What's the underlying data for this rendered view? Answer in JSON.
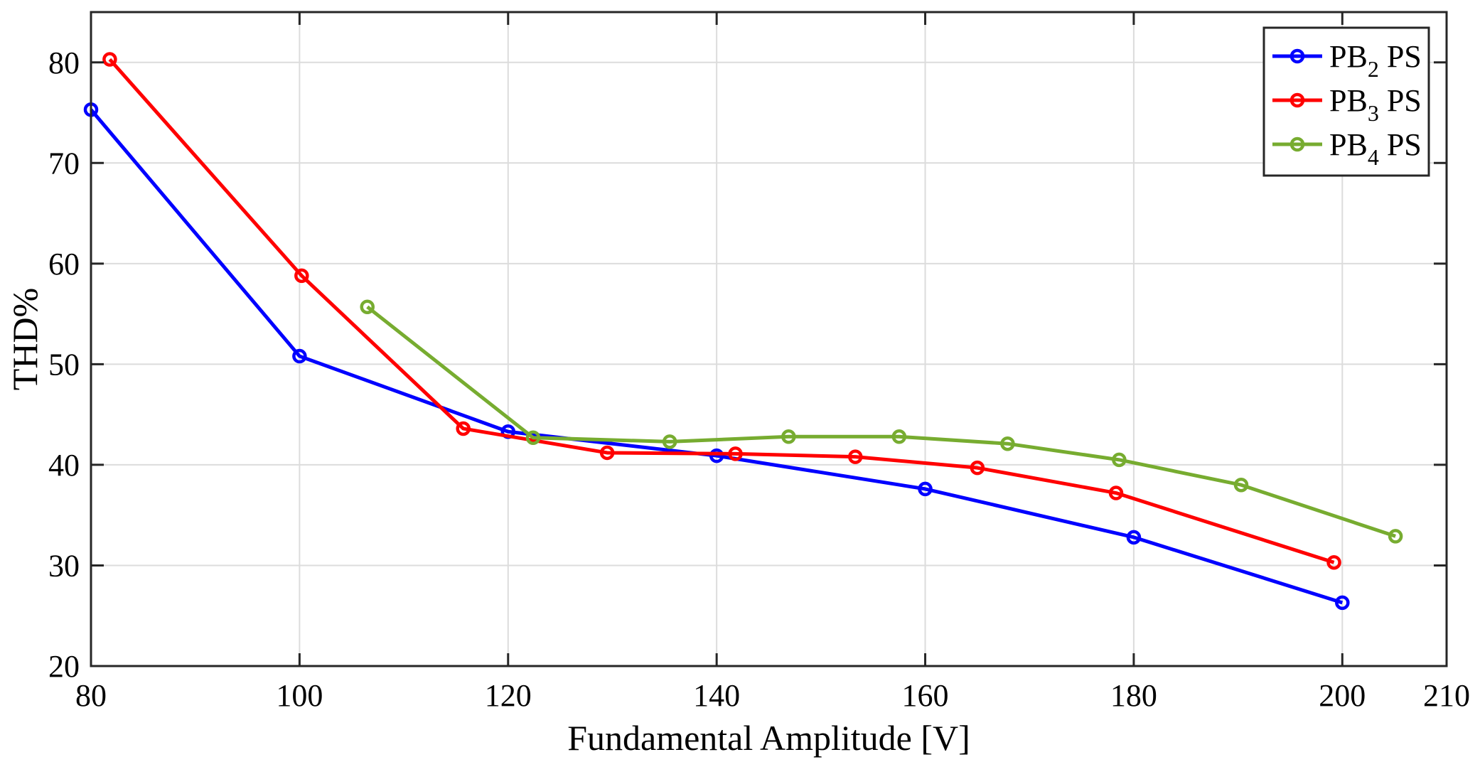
{
  "chart_data": {
    "type": "line",
    "title": "",
    "xlabel": "Fundamental Amplitude [V]",
    "ylabel": "THD%",
    "xlim": [
      80,
      210
    ],
    "ylim": [
      20,
      85
    ],
    "xticks": [
      80,
      100,
      120,
      140,
      160,
      180,
      200,
      210
    ],
    "yticks": [
      20,
      30,
      40,
      50,
      60,
      70,
      80
    ],
    "grid": true,
    "legend_position": "top-right",
    "series": [
      {
        "name": "PB2 PS",
        "legend": {
          "base": "PB",
          "sub": "2",
          "suffix": " PS"
        },
        "color": "#0000ff",
        "x": [
          80,
          100,
          120,
          140,
          160,
          180,
          200
        ],
        "y": [
          75.3,
          50.8,
          43.3,
          40.9,
          37.6,
          32.8,
          26.3
        ]
      },
      {
        "name": "PB3 PS",
        "legend": {
          "base": "PB",
          "sub": "3",
          "suffix": " PS"
        },
        "color": "#ff0000",
        "x": [
          81.8,
          100.2,
          115.7,
          129.5,
          141.8,
          153.3,
          165.0,
          178.3,
          199.2
        ],
        "y": [
          80.3,
          58.8,
          43.6,
          41.2,
          41.1,
          40.8,
          39.7,
          37.2,
          30.3
        ]
      },
      {
        "name": "PB4 PS",
        "legend": {
          "base": "PB",
          "sub": "4",
          "suffix": " PS"
        },
        "color": "#77ac30",
        "x": [
          106.5,
          122.4,
          135.5,
          146.9,
          157.5,
          167.9,
          178.6,
          190.3,
          205.1
        ],
        "y": [
          55.7,
          42.7,
          42.3,
          42.8,
          42.8,
          42.1,
          40.5,
          38.0,
          32.9
        ]
      }
    ]
  }
}
